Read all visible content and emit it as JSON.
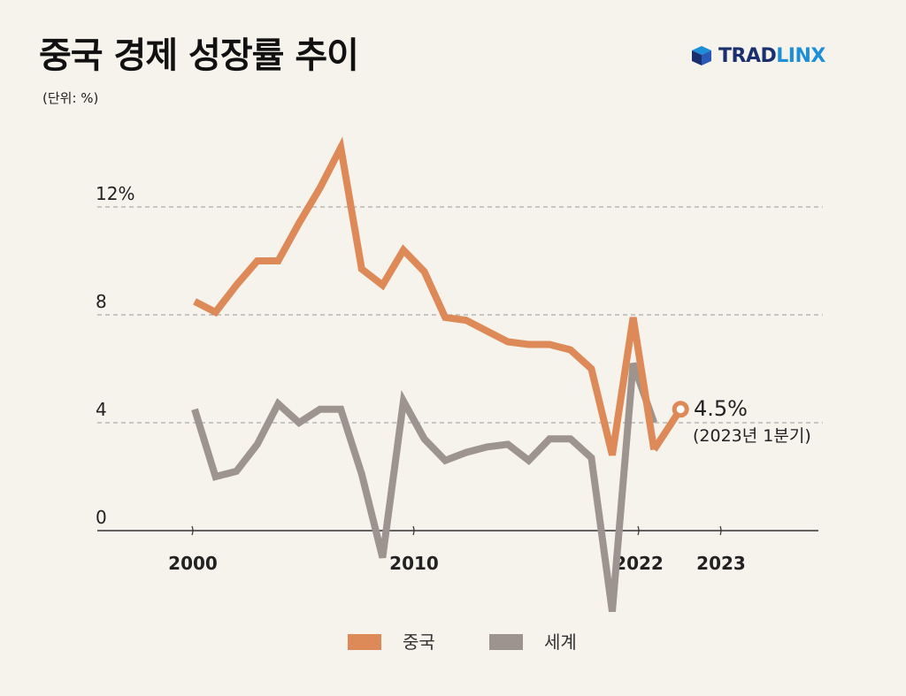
{
  "header": {
    "title": "중국 경제 성장률 추이",
    "unit": "(단위: %)",
    "logo_trad": "TRAD",
    "logo_linx": "LINX",
    "logo_icon": "cube-icon"
  },
  "colors": {
    "china": "#dd8a58",
    "world": "#9e948f",
    "grid": "#9a9a9a",
    "axis": "#333333"
  },
  "chart_data": {
    "type": "line",
    "title": "중국 경제 성장률 추이",
    "ylabel": "(단위: %)",
    "ylim": [
      0,
      14
    ],
    "yticks": [
      "0",
      "4",
      "8",
      "12%"
    ],
    "ytick_values": [
      0,
      4,
      8,
      12
    ],
    "xtick_labels": [
      "2000",
      "2010",
      "2022",
      "2023"
    ],
    "x": [
      2000,
      2001,
      2002,
      2003,
      2004,
      2005,
      2006,
      2007,
      2008,
      2009,
      2010,
      2011,
      2012,
      2013,
      2014,
      2015,
      2016,
      2017,
      2018,
      2019,
      2020,
      2021,
      2022
    ],
    "series": [
      {
        "name": "중국",
        "values": [
          8.5,
          8.1,
          9.1,
          10.0,
          10.0,
          11.4,
          12.7,
          14.2,
          9.7,
          9.1,
          10.4,
          9.6,
          7.9,
          7.8,
          7.4,
          7.0,
          6.9,
          6.9,
          6.7,
          6.0,
          2.8,
          7.9,
          3.0
        ]
      },
      {
        "name": "세계",
        "values": [
          4.5,
          2.0,
          2.2,
          3.2,
          4.7,
          4.0,
          4.5,
          4.5,
          2.1,
          -1.0,
          4.8,
          3.4,
          2.6,
          2.9,
          3.1,
          3.2,
          2.6,
          3.4,
          3.4,
          2.7,
          -3.0,
          6.2,
          4.0
        ]
      }
    ],
    "annotation": {
      "x": "2023 Q1",
      "value": 4.5,
      "label": "4.5%",
      "sublabel": "(2023년 1분기)"
    },
    "grid": true,
    "legend_position": "bottom"
  }
}
